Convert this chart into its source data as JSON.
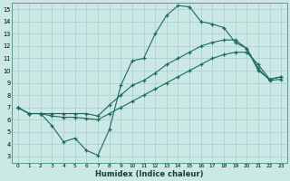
{
  "title": "",
  "xlabel": "Humidex (Indice chaleur)",
  "bg_color": "#cce8e4",
  "line_color": "#1a6b5a",
  "grid_color": "#aad4ce",
  "xlim": [
    -0.5,
    23.5
  ],
  "ylim": [
    2.5,
    15.5
  ],
  "yticks": [
    3,
    4,
    5,
    6,
    7,
    8,
    9,
    10,
    11,
    12,
    13,
    14,
    15
  ],
  "xticks": [
    0,
    1,
    2,
    3,
    4,
    5,
    6,
    7,
    8,
    9,
    10,
    11,
    12,
    13,
    14,
    15,
    16,
    17,
    18,
    19,
    20,
    21,
    22,
    23
  ],
  "line1_x": [
    0,
    1,
    2,
    3,
    4,
    5,
    6,
    7,
    8,
    9,
    10,
    11,
    12,
    13,
    14,
    15,
    16,
    17,
    18,
    19,
    20,
    21,
    22,
    23
  ],
  "line1_y": [
    7.0,
    6.5,
    6.5,
    5.5,
    4.2,
    4.5,
    3.5,
    3.1,
    5.2,
    8.8,
    10.8,
    11.0,
    13.0,
    14.5,
    15.3,
    15.2,
    14.0,
    13.8,
    13.5,
    12.3,
    11.8,
    10.2,
    9.2,
    9.3
  ],
  "line2_x": [
    0,
    1,
    2,
    3,
    4,
    5,
    6,
    7,
    8,
    9,
    10,
    11,
    12,
    13,
    14,
    15,
    16,
    17,
    18,
    19,
    20,
    21,
    22,
    23
  ],
  "line2_y": [
    7.0,
    6.5,
    6.5,
    6.5,
    6.5,
    6.5,
    6.5,
    6.3,
    7.2,
    8.0,
    8.8,
    9.2,
    9.8,
    10.5,
    11.0,
    11.5,
    12.0,
    12.3,
    12.5,
    12.5,
    11.8,
    10.0,
    9.3,
    9.5
  ],
  "line3_x": [
    0,
    1,
    2,
    3,
    4,
    5,
    6,
    7,
    8,
    9,
    10,
    11,
    12,
    13,
    14,
    15,
    16,
    17,
    18,
    19,
    20,
    21,
    22,
    23
  ],
  "line3_y": [
    7.0,
    6.5,
    6.5,
    6.3,
    6.2,
    6.2,
    6.1,
    6.0,
    6.5,
    7.0,
    7.5,
    8.0,
    8.5,
    9.0,
    9.5,
    10.0,
    10.5,
    11.0,
    11.3,
    11.5,
    11.5,
    10.5,
    9.3,
    9.5
  ]
}
